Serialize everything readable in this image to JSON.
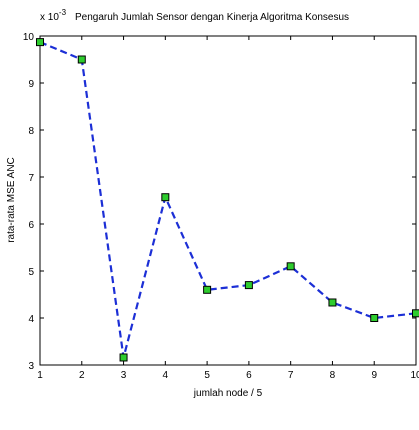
{
  "chart_data": {
    "type": "line",
    "title": "Pengaruh Jumlah Sensor dengan Kinerja Algoritma Konsesus",
    "scale_base": "x 10",
    "scale_exponent": "-3",
    "xlabel": "jumlah node / 5",
    "ylabel": "rata-rata MSE ANC",
    "x": [
      1,
      2,
      3,
      4,
      5,
      6,
      7,
      8,
      9,
      10
    ],
    "xlim": [
      1,
      10
    ],
    "ylim": [
      3,
      10
    ],
    "x_ticks": [
      1,
      2,
      3,
      4,
      5,
      6,
      7,
      8,
      9,
      10
    ],
    "y_ticks": [
      3,
      4,
      5,
      6,
      7,
      8,
      9,
      10
    ],
    "series": [
      {
        "values": [
          9.87,
          9.5,
          3.16,
          6.57,
          4.6,
          4.7,
          5.1,
          4.33,
          4.0,
          4.1
        ],
        "line_color": "#1c2fd6",
        "line_style": "dashed",
        "marker": "square",
        "marker_fill": "#2ecc2e",
        "marker_edge": "#000000"
      }
    ],
    "grid": false
  }
}
